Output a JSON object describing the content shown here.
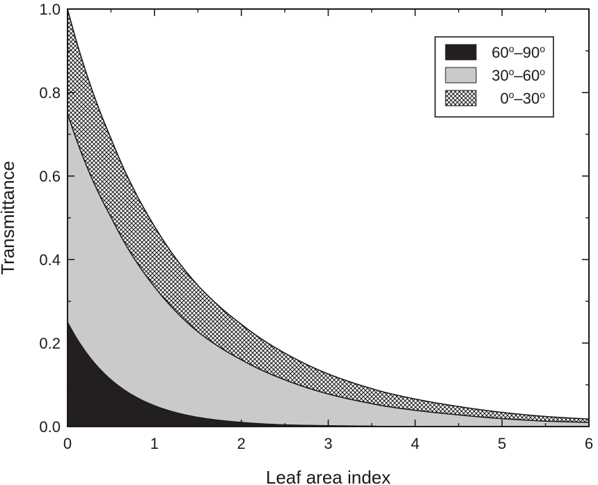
{
  "chart_data": {
    "type": "area",
    "title": "",
    "xlabel": "Leaf area index",
    "ylabel": "Transmittance",
    "xlim": [
      0,
      6
    ],
    "ylim": [
      0,
      1.0
    ],
    "x_ticks": [
      "0",
      "1",
      "2",
      "3",
      "4",
      "5",
      "6"
    ],
    "y_ticks": [
      "0.0",
      "0.2",
      "0.4",
      "0.6",
      "0.8",
      "1.0"
    ],
    "legend_position": "top-right",
    "grid": false,
    "stacked": true,
    "x": [
      0,
      0.5,
      1,
      1.5,
      2,
      2.5,
      3,
      3.5,
      4,
      4.5,
      5,
      5.5,
      6
    ],
    "series": [
      {
        "name": "60°–90°",
        "legend": {
          "a": "60",
          "b": "90"
        },
        "fill": "#231f20",
        "values": [
          0.25,
          0.112,
          0.05,
          0.022,
          0.01,
          0.004,
          0.002,
          0.001,
          0.0,
          0.0,
          0.0,
          0.0,
          0.0
        ]
      },
      {
        "name": "30°–60°",
        "legend": {
          "a": "30",
          "b": "60"
        },
        "fill": "#c9cacb",
        "values": [
          0.5,
          0.39,
          0.285,
          0.205,
          0.15,
          0.108,
          0.076,
          0.054,
          0.039,
          0.028,
          0.019,
          0.013,
          0.01
        ]
      },
      {
        "name": "0°–30°",
        "legend": {
          "a": "0",
          "b": "30"
        },
        "fill": "crosshatch",
        "values": [
          0.25,
          0.188,
          0.145,
          0.111,
          0.085,
          0.064,
          0.048,
          0.036,
          0.027,
          0.02,
          0.015,
          0.011,
          0.008
        ]
      }
    ],
    "total_curve": [
      1.0,
      0.69,
      0.48,
      0.338,
      0.245,
      0.176,
      0.126,
      0.091,
      0.066,
      0.048,
      0.034,
      0.024,
      0.018
    ]
  }
}
